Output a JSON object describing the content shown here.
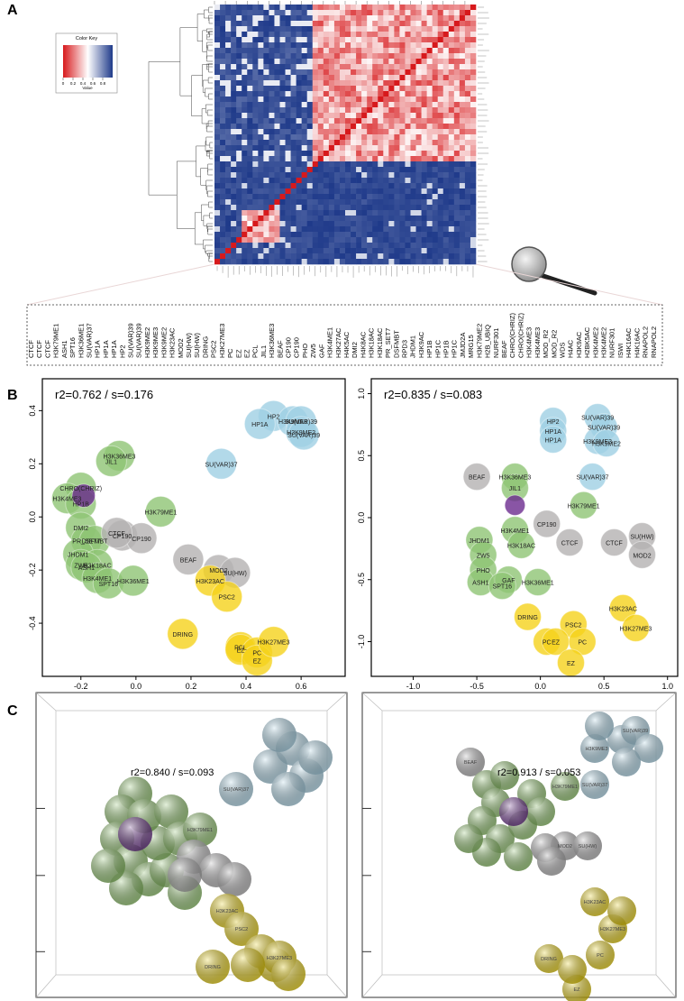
{
  "figure": {
    "panel_labels": [
      "A",
      "B",
      "C"
    ],
    "color_key": {
      "title": "Color Key",
      "xlabel": "Value",
      "lim": [
        0,
        1
      ],
      "ticks": [
        0,
        0.2,
        0.4,
        0.6,
        0.8
      ]
    },
    "mark_labels": [
      "CTCF",
      "CTCF",
      "CTCF",
      "H3K79ME1",
      "ASH1",
      "SPT16",
      "H3K36ME1",
      "SU(VAR)37",
      "HP1A",
      "HP1A",
      "HP1A",
      "HP2",
      "SU(VAR)39",
      "SU(VAR)39",
      "H3K9ME2",
      "H3K9ME3",
      "H3K9ME2",
      "H3K23AC",
      "MOD2",
      "SU(HW)",
      "SU(HW)",
      "DRING",
      "PSC2",
      "H3K27ME3",
      "PC",
      "EZ",
      "EZ",
      "PCL",
      "JIL1",
      "H3K36ME3",
      "BEAF",
      "CP190",
      "CP190",
      "PHO",
      "ZW5",
      "GAF",
      "H3K4ME1",
      "H3K27AC",
      "H4K5AC",
      "DMI2",
      "H4K8AC",
      "H3K18AC",
      "H3K18AC",
      "PR_SET7",
      "DSFMBT",
      "RPD3",
      "JHDM1",
      "H3K9AC",
      "HP1B",
      "HP1C",
      "HP1B",
      "HP1C",
      "JMJD2A",
      "MRG15",
      "H3K79ME2",
      "H2B_UBIQ",
      "NURF301",
      "BEAF",
      "CHRO(CHRIZ)",
      "CHRO(CHRIZ)",
      "H3K4ME3",
      "H3K4ME3",
      "MOD_R2",
      "MOD_R2",
      "WDS",
      "H4AC",
      "H3K9AC",
      "H2BK5AC",
      "H3K4ME2",
      "H3K4ME2",
      "NURF301",
      "ISWI",
      "H4K16AC",
      "H4K16AC",
      "RNAPOL2",
      "RNAPOL2"
    ]
  },
  "chart_data": [
    {
      "type": "scatter",
      "title": "r2=0.762 / s=0.176",
      "xlim": [
        -0.34,
        0.76
      ],
      "ylim": [
        -0.6,
        0.52
      ],
      "xticks": [
        -0.2,
        {
          "value": 0,
          "label": "0.0"
        },
        0.2,
        0.4,
        0.6
      ],
      "yticks": [
        -0.4,
        -0.2,
        {
          "value": 0,
          "label": "0.0"
        },
        0.2,
        0.4
      ],
      "x": [
        0.5,
        0.45,
        0.57,
        0.6,
        0.6,
        0.61,
        0.31,
        -0.06,
        -0.09,
        0.09,
        -0.2,
        -0.25,
        -0.2,
        -0.2,
        -0.18,
        -0.15,
        -0.21,
        -0.2,
        -0.14,
        -0.18,
        -0.14,
        -0.1,
        -0.01,
        -0.05,
        0.02,
        -0.07,
        0.19,
        0.3,
        0.36,
        0.27,
        0.33,
        0.17,
        0.38,
        0.38,
        0.44,
        0.44,
        0.5,
        -0.19
      ],
      "values": [
        0.38,
        0.35,
        0.36,
        0.36,
        0.32,
        0.31,
        0.2,
        0.23,
        0.21,
        0.02,
        0.11,
        0.07,
        0.05,
        -0.04,
        -0.09,
        -0.09,
        -0.14,
        -0.18,
        -0.18,
        -0.19,
        -0.23,
        -0.25,
        -0.24,
        -0.07,
        -0.08,
        -0.06,
        -0.16,
        -0.2,
        -0.21,
        -0.24,
        -0.3,
        -0.44,
        -0.49,
        -0.5,
        -0.51,
        -0.54,
        -0.47,
        0.08
      ],
      "point_labels": [
        "HP2",
        "HP1A",
        "H3K9ME3",
        "SU(VAR)39",
        "H3K9ME2",
        "SU(VAR)39",
        "SU(VAR)37",
        "H3K36ME3",
        "JIL1",
        "H3K79ME1",
        "CHRO(CHRIZ)",
        "H3K4ME3",
        "HP1B",
        "DMI2",
        "PR_SET7",
        "DSFMBT",
        "JHDM1",
        "ZW5",
        "H3K18AC",
        "ASH1",
        "H3K4ME1",
        "SPT16",
        "H3K36ME1",
        "CP190",
        "CP190",
        "CTCF",
        "BEAF",
        "MOD2",
        "SU(HW)",
        "H3K23AC",
        "PSC2",
        "DRING",
        "PCL",
        "EZ",
        "PC",
        "EZ",
        "H3K27ME3",
        null
      ],
      "point_colors": [
        "#9fd0e4",
        "#9fd0e4",
        "#9fd0e4",
        "#9fd0e4",
        "#9fd0e4",
        "#9fd0e4",
        "#9fd0e4",
        "#8fc474",
        "#8fc474",
        "#8fc474",
        "#8fc474",
        "#8fc474",
        "#8fc474",
        "#8fc474",
        "#8fc474",
        "#8fc474",
        "#8fc474",
        "#8fc474",
        "#8fc474",
        "#8fc474",
        "#8fc474",
        "#8fc474",
        "#8fc474",
        "#b4b2b2",
        "#b4b2b2",
        "#b4b2b2",
        "#b4b2b2",
        "#b4b2b2",
        "#b4b2b2",
        "#f5d21c",
        "#f5d21c",
        "#f5d21c",
        "#f5d21c",
        "#f5d21c",
        "#f5d21c",
        "#f5d21c",
        "#f5d21c",
        "#6b2b8e"
      ]
    },
    {
      "type": "scatter",
      "title": "r2=0.835 / s=0.083",
      "xlim": [
        -1.33,
        1.08
      ],
      "ylim": [
        -1.28,
        1.12
      ],
      "xticks": [
        {
          "value": -1,
          "label": "-1.0"
        },
        -0.5,
        {
          "value": 0,
          "label": "0.0"
        },
        0.5,
        {
          "value": 1,
          "label": "1.0"
        }
      ],
      "yticks": [
        {
          "value": -1,
          "label": "-1.0"
        },
        -0.5,
        {
          "value": 0,
          "label": "0.0"
        },
        0.5,
        {
          "value": 1,
          "label": "1.0"
        }
      ],
      "x": [
        0.1,
        0.45,
        0.5,
        0.1,
        0.1,
        0.45,
        0.52,
        0.41,
        -0.5,
        -0.2,
        -0.2,
        0.34,
        -0.2,
        -0.15,
        -0.48,
        -0.45,
        -0.45,
        -0.47,
        -0.25,
        -0.3,
        -0.02,
        0.05,
        0.23,
        0.58,
        0.8,
        0.8,
        -0.1,
        0.65,
        0.26,
        0.75,
        0.05,
        0.12,
        0.33,
        0.24,
        -0.2
      ],
      "values": [
        0.78,
        0.81,
        0.73,
        0.7,
        0.63,
        0.62,
        0.6,
        0.33,
        0.33,
        0.33,
        0.24,
        0.1,
        -0.1,
        -0.22,
        -0.18,
        -0.3,
        -0.42,
        -0.52,
        -0.5,
        -0.55,
        -0.52,
        -0.05,
        -0.2,
        -0.2,
        -0.15,
        -0.3,
        -0.8,
        -0.73,
        -0.86,
        -0.89,
        -1.0,
        -1.0,
        -1.0,
        -1.17,
        0.1
      ],
      "point_labels": [
        "HP2",
        "SU(VAR)39",
        "SU(VAR)39",
        "HP1A",
        "HP1A",
        "H3K9ME3",
        "H3K9ME2",
        "SU(VAR)37",
        "BEAF",
        "H3K36ME3",
        "JIL1",
        "H3K79ME1",
        "H3K4ME1",
        "H3K18AC",
        "JHDM1",
        "ZW5",
        "PHO",
        "ASH1",
        "GAF",
        "SPT16",
        "H3K36ME1",
        "CP190",
        "CTCF",
        "CTCF",
        "SU(HW)",
        "MOD2",
        "DRING",
        "H3K23AC",
        "PSC2",
        "H3K27ME3",
        "PC",
        "EZ",
        "PC",
        "EZ",
        null
      ],
      "point_colors": [
        "#9fd0e4",
        "#9fd0e4",
        "#9fd0e4",
        "#9fd0e4",
        "#9fd0e4",
        "#9fd0e4",
        "#9fd0e4",
        "#9fd0e4",
        "#b4b2b2",
        "#8fc474",
        "#8fc474",
        "#8fc474",
        "#8fc474",
        "#8fc474",
        "#8fc474",
        "#8fc474",
        "#8fc474",
        "#8fc474",
        "#8fc474",
        "#8fc474",
        "#8fc474",
        "#b4b2b2",
        "#b4b2b2",
        "#b4b2b2",
        "#b4b2b2",
        "#b4b2b2",
        "#f5d21c",
        "#f5d21c",
        "#f5d21c",
        "#f5d21c",
        "#f5d21c",
        "#f5d21c",
        "#f5d21c",
        "#f5d21c",
        "#6b2b8e"
      ]
    }
  ],
  "panel_c": [
    {
      "title": "r2=0.840 / s=0.093",
      "labels": [
        "H3K79ME1",
        "SU(VAR)37",
        "H3K23AC",
        "PSC2",
        "H3K27ME3",
        "DRING"
      ]
    },
    {
      "title": "r2=0.913 / s=0.053",
      "labels": [
        "BEAF",
        "H3K79ME1",
        "SU(VAR)37",
        "H3K9ME3",
        "SU(VAR)39",
        "MOD2",
        "SU(HW)",
        "DRING",
        "H3K23AC",
        "H3K27ME3",
        "PC",
        "EZ"
      ]
    }
  ]
}
